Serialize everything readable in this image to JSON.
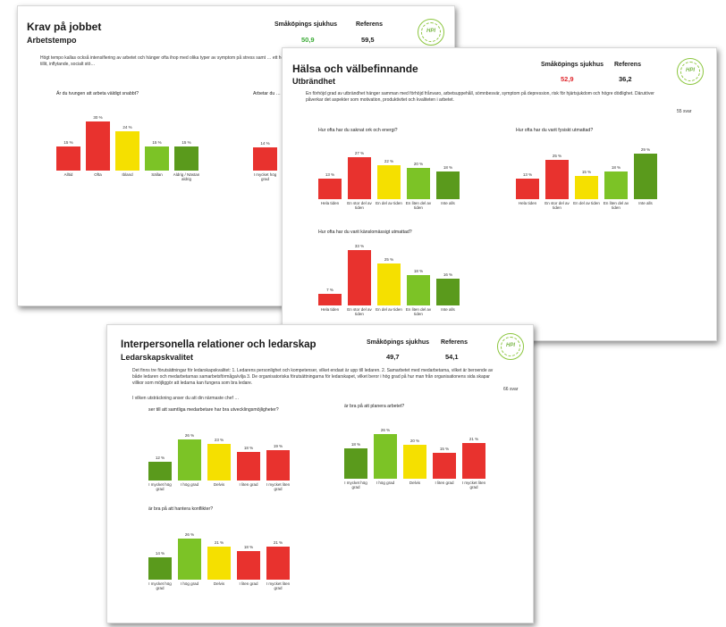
{
  "colors": {
    "red": "#e8322e",
    "green_dark": "#5a9a1c",
    "green_light": "#7cc326",
    "yellow": "#f5e000",
    "score_green": "#3aaa35",
    "score_red": "#e0282e"
  },
  "pages": [
    {
      "title": "Krav på jobbet",
      "subtitle": "Arbetstempo",
      "org_label": "Småköpings sjukhus",
      "ref_label": "Referens",
      "org_value": "50,9",
      "ref_value": "59,5",
      "logo": "HPI",
      "description": "Högt tempo kallas också intensifiering av arbetet och hänger ofta ihop med olika typer av symptom på stress samt … ett högt arbetstempo förvärras om arbetet är enformigt, och om det finns en låg grad av tillit, inflytande, socialt stö…",
      "svar": "",
      "intro": "",
      "charts": [
        {
          "type": "bar",
          "question": "Är du tvungen att arbeta väldigt snabbt?",
          "categories": [
            "Alltid",
            "Ofta",
            "Ibland",
            "Sällan",
            "Aldrig / Nästan aldrig"
          ],
          "values": [
            15,
            30,
            24,
            15,
            15
          ],
          "value_labels": [
            "15 %",
            "30 %",
            "24 %",
            "15 %",
            "15 %"
          ],
          "colors": [
            "red",
            "red",
            "yellow",
            "green_light",
            "green_dark"
          ],
          "ylim": [
            0,
            35
          ]
        },
        {
          "type": "bar",
          "question": "Arbetar du …",
          "categories": [
            "I mycket hög grad"
          ],
          "values": [
            14
          ],
          "value_labels": [
            "14 %"
          ],
          "colors": [
            "red"
          ],
          "ylim": [
            0,
            35
          ]
        }
      ]
    },
    {
      "title": "Hälsa och välbefinnande",
      "subtitle": "Utbrändhet",
      "org_label": "Småköpings sjukhus",
      "ref_label": "Referens",
      "org_value": "52,9",
      "ref_value": "36,2",
      "logo": "HPI",
      "description": "En förhöjd grad av utbrändhet hänger samman med förhöjd frånvaro, arbetsuppehåll, sömnbesvär, symptom på depression, risk för hjärtsjukdom och högre dödlighet. Därutöver påverkar det aspekter som motivation, produktivitet och kvaliteten i arbetet.",
      "svar": "55 svar",
      "intro": "",
      "charts": [
        {
          "type": "bar",
          "question": "Hur ofta har du saknat ork och energi?",
          "categories": [
            "Hela tiden",
            "En stor del av tiden",
            "En del av tiden",
            "En liten del av tiden",
            "Inte alls"
          ],
          "values": [
            13,
            27,
            22,
            20,
            18
          ],
          "value_labels": [
            "13 %",
            "27 %",
            "22 %",
            "20 %",
            "18 %"
          ],
          "colors": [
            "red",
            "red",
            "yellow",
            "green_light",
            "green_dark"
          ],
          "ylim": [
            0,
            35
          ]
        },
        {
          "type": "bar",
          "question": "Hur ofta har du varit fysiskt utmattad?",
          "categories": [
            "Hela tiden",
            "En stor del av tiden",
            "En del av tiden",
            "En liten del av tiden",
            "Inte alls"
          ],
          "values": [
            13,
            25,
            15,
            18,
            29
          ],
          "value_labels": [
            "13 %",
            "25 %",
            "15 %",
            "18 %",
            "29 %"
          ],
          "colors": [
            "red",
            "red",
            "yellow",
            "green_light",
            "green_dark"
          ],
          "ylim": [
            0,
            35
          ]
        },
        {
          "type": "bar",
          "question": "Hur ofta har du varit känslomässigt utmattad?",
          "categories": [
            "Hela tiden",
            "En stor del av tiden",
            "En del av tiden",
            "En liten del av tiden",
            "Inte alls"
          ],
          "values": [
            7,
            33,
            25,
            18,
            16
          ],
          "value_labels": [
            "7 %",
            "33 %",
            "25 %",
            "18 %",
            "16 %"
          ],
          "colors": [
            "red",
            "red",
            "yellow",
            "green_light",
            "green_dark"
          ],
          "ylim": [
            0,
            35
          ]
        }
      ]
    },
    {
      "title": "Interpersonella relationer och ledarskap",
      "subtitle": "Ledarskapskvalitet",
      "org_label": "Småköpings sjukhus",
      "ref_label": "Referens",
      "org_value": "49,7",
      "ref_value": "54,1",
      "logo": "HPI",
      "description": "Det finns tre förutsättningar för ledarskapskvalitet: 1. Ledarens personlighet och kompetenser, vilket endast är upp till ledaren. 2. Samarbetet med medarbetarna, vilket är beroende av både ledaren och medarbetarnas samarbetsförmåga/vilja 3. De organisatoriska förutsättningarna för ledarskapet, vilket beror i hög grad på hur man från organisationens sida skapar villkor som möjliggör att ledarna kan fungera som bra ledare.",
      "svar": "66 svar",
      "intro": "I vilken utsträckning anser du att din närmaste chef …",
      "charts": [
        {
          "type": "bar",
          "question": "ser till att samtliga medarbetare har bra utvecklingsmöjligheter?",
          "categories": [
            "I mycket hög grad",
            "I hög grad",
            "Delvis",
            "I liten grad",
            "I mycket liten grad"
          ],
          "values": [
            12,
            26,
            23,
            18,
            19
          ],
          "value_labels": [
            "12 %",
            "26 %",
            "23 %",
            "18 %",
            "19 %"
          ],
          "colors": [
            "green_dark",
            "green_light",
            "yellow",
            "red",
            "red"
          ],
          "ylim": [
            0,
            35
          ]
        },
        {
          "type": "bar",
          "question": "är bra på att planera arbetet?",
          "categories": [
            "I mycket hög grad",
            "I hög grad",
            "Delvis",
            "I liten grad",
            "I mycket liten grad"
          ],
          "values": [
            18,
            26,
            20,
            15,
            21
          ],
          "value_labels": [
            "18 %",
            "26 %",
            "20 %",
            "15 %",
            "21 %"
          ],
          "colors": [
            "green_dark",
            "green_light",
            "yellow",
            "red",
            "red"
          ],
          "ylim": [
            0,
            35
          ]
        },
        {
          "type": "bar",
          "question": "är bra på att hantera konflikter?",
          "categories": [
            "I mycket hög grad",
            "I hög grad",
            "Delvis",
            "I liten grad",
            "I mycket liten grad"
          ],
          "values": [
            14,
            26,
            21,
            18,
            21
          ],
          "value_labels": [
            "14 %",
            "26 %",
            "21 %",
            "18 %",
            "21 %"
          ],
          "colors": [
            "green_dark",
            "green_light",
            "yellow",
            "red",
            "red"
          ],
          "ylim": [
            0,
            35
          ]
        }
      ]
    }
  ]
}
